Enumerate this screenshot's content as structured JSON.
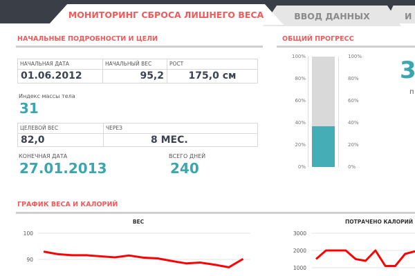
{
  "tabs": [
    {
      "label": "МОНИТОРИНГ СБРОСА ЛИШНЕГО ВЕСА",
      "active": true
    },
    {
      "label": "ВВОД ДАННЫХ"
    },
    {
      "label": "И"
    }
  ],
  "details": {
    "title": "НАЧАЛЬНЫЕ ПОДРОБНОСТИ И ЦЕЛИ",
    "start_date_label": "НАЧАЛЬНАЯ ДАТА",
    "start_date": "01.06.2012",
    "start_weight_label": "НАЧАЛЬНЫЙ ВЕС",
    "start_weight": "95,2",
    "height_label": "РОСТ",
    "height": "175,0 см",
    "bmi_label": "Индекс массы тела",
    "bmi": "31",
    "target_weight_label": "ЦЕЛЕВОЙ ВЕС",
    "target_weight": "82,0",
    "through_label": "ЧЕРЕЗ",
    "through": "8 МЕС.",
    "end_date_label": "КОНЕЧНАЯ ДАТА",
    "end_date": "27.01.2013",
    "total_days_label": "ВСЕГО ДНЕЙ",
    "total_days": "240"
  },
  "progress": {
    "title": "ОБЩИЙ ПРОГРЕСС",
    "value_percent": 37,
    "ticks": [
      "100%",
      "80%",
      "60%",
      "40%",
      "20%",
      "0%"
    ],
    "big_value_partial": "3",
    "sub_partial": "п",
    "fill_color": "#45adb5",
    "track_color": "#d9d9d9"
  },
  "charts_title": "ГРАФИК ВЕСА И КАЛОРИЙ",
  "chart_data": [
    {
      "type": "line",
      "title": "ВЕС",
      "y_ticks": [
        "100",
        "90"
      ],
      "ylim_visible": [
        87,
        100
      ],
      "color": "#ff0000",
      "values": [
        93,
        92,
        91.6,
        91.6,
        91.2,
        90.8,
        91.5,
        90.7,
        90.4,
        89.4,
        88.5,
        88.8,
        88,
        87,
        90.2
      ]
    },
    {
      "type": "line",
      "title": "ПОТРАЧЕНО КАЛОРИЙ",
      "y_ticks": [
        "3000",
        "2000",
        "1000"
      ],
      "color": "#ff0000",
      "values": [
        1500,
        2000,
        2000,
        2000,
        1500,
        1400,
        2000,
        1100,
        1100,
        1800,
        1950
      ]
    }
  ]
}
